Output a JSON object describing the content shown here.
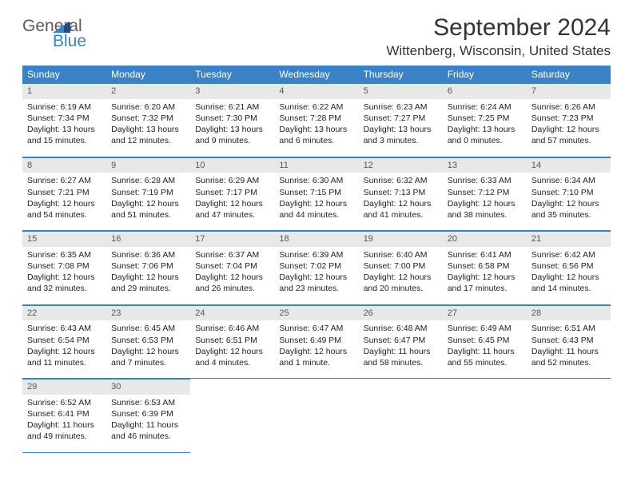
{
  "logo": {
    "textTop": "General",
    "textBottom": "Blue"
  },
  "header": {
    "title": "September 2024",
    "location": "Wittenberg, Wisconsin, United States"
  },
  "colors": {
    "headerBar": "#3a82c4",
    "headerText": "#ffffff",
    "dayNumBg": "#e8e8e8",
    "border": "#3a82c4",
    "logoGrey": "#5a5a5a",
    "logoBlue": "#3a82c4"
  },
  "columns": [
    "Sunday",
    "Monday",
    "Tuesday",
    "Wednesday",
    "Thursday",
    "Friday",
    "Saturday"
  ],
  "weeks": [
    [
      {
        "n": "1",
        "sr": "6:19 AM",
        "ss": "7:34 PM",
        "dl1": "13 hours",
        "dl2": "and 15 minutes."
      },
      {
        "n": "2",
        "sr": "6:20 AM",
        "ss": "7:32 PM",
        "dl1": "13 hours",
        "dl2": "and 12 minutes."
      },
      {
        "n": "3",
        "sr": "6:21 AM",
        "ss": "7:30 PM",
        "dl1": "13 hours",
        "dl2": "and 9 minutes."
      },
      {
        "n": "4",
        "sr": "6:22 AM",
        "ss": "7:28 PM",
        "dl1": "13 hours",
        "dl2": "and 6 minutes."
      },
      {
        "n": "5",
        "sr": "6:23 AM",
        "ss": "7:27 PM",
        "dl1": "13 hours",
        "dl2": "and 3 minutes."
      },
      {
        "n": "6",
        "sr": "6:24 AM",
        "ss": "7:25 PM",
        "dl1": "13 hours",
        "dl2": "and 0 minutes."
      },
      {
        "n": "7",
        "sr": "6:26 AM",
        "ss": "7:23 PM",
        "dl1": "12 hours",
        "dl2": "and 57 minutes."
      }
    ],
    [
      {
        "n": "8",
        "sr": "6:27 AM",
        "ss": "7:21 PM",
        "dl1": "12 hours",
        "dl2": "and 54 minutes."
      },
      {
        "n": "9",
        "sr": "6:28 AM",
        "ss": "7:19 PM",
        "dl1": "12 hours",
        "dl2": "and 51 minutes."
      },
      {
        "n": "10",
        "sr": "6:29 AM",
        "ss": "7:17 PM",
        "dl1": "12 hours",
        "dl2": "and 47 minutes."
      },
      {
        "n": "11",
        "sr": "6:30 AM",
        "ss": "7:15 PM",
        "dl1": "12 hours",
        "dl2": "and 44 minutes."
      },
      {
        "n": "12",
        "sr": "6:32 AM",
        "ss": "7:13 PM",
        "dl1": "12 hours",
        "dl2": "and 41 minutes."
      },
      {
        "n": "13",
        "sr": "6:33 AM",
        "ss": "7:12 PM",
        "dl1": "12 hours",
        "dl2": "and 38 minutes."
      },
      {
        "n": "14",
        "sr": "6:34 AM",
        "ss": "7:10 PM",
        "dl1": "12 hours",
        "dl2": "and 35 minutes."
      }
    ],
    [
      {
        "n": "15",
        "sr": "6:35 AM",
        "ss": "7:08 PM",
        "dl1": "12 hours",
        "dl2": "and 32 minutes."
      },
      {
        "n": "16",
        "sr": "6:36 AM",
        "ss": "7:06 PM",
        "dl1": "12 hours",
        "dl2": "and 29 minutes."
      },
      {
        "n": "17",
        "sr": "6:37 AM",
        "ss": "7:04 PM",
        "dl1": "12 hours",
        "dl2": "and 26 minutes."
      },
      {
        "n": "18",
        "sr": "6:39 AM",
        "ss": "7:02 PM",
        "dl1": "12 hours",
        "dl2": "and 23 minutes."
      },
      {
        "n": "19",
        "sr": "6:40 AM",
        "ss": "7:00 PM",
        "dl1": "12 hours",
        "dl2": "and 20 minutes."
      },
      {
        "n": "20",
        "sr": "6:41 AM",
        "ss": "6:58 PM",
        "dl1": "12 hours",
        "dl2": "and 17 minutes."
      },
      {
        "n": "21",
        "sr": "6:42 AM",
        "ss": "6:56 PM",
        "dl1": "12 hours",
        "dl2": "and 14 minutes."
      }
    ],
    [
      {
        "n": "22",
        "sr": "6:43 AM",
        "ss": "6:54 PM",
        "dl1": "12 hours",
        "dl2": "and 11 minutes."
      },
      {
        "n": "23",
        "sr": "6:45 AM",
        "ss": "6:53 PM",
        "dl1": "12 hours",
        "dl2": "and 7 minutes."
      },
      {
        "n": "24",
        "sr": "6:46 AM",
        "ss": "6:51 PM",
        "dl1": "12 hours",
        "dl2": "and 4 minutes."
      },
      {
        "n": "25",
        "sr": "6:47 AM",
        "ss": "6:49 PM",
        "dl1": "12 hours",
        "dl2": "and 1 minute."
      },
      {
        "n": "26",
        "sr": "6:48 AM",
        "ss": "6:47 PM",
        "dl1": "11 hours",
        "dl2": "and 58 minutes."
      },
      {
        "n": "27",
        "sr": "6:49 AM",
        "ss": "6:45 PM",
        "dl1": "11 hours",
        "dl2": "and 55 minutes."
      },
      {
        "n": "28",
        "sr": "6:51 AM",
        "ss": "6:43 PM",
        "dl1": "11 hours",
        "dl2": "and 52 minutes."
      }
    ],
    [
      {
        "n": "29",
        "sr": "6:52 AM",
        "ss": "6:41 PM",
        "dl1": "11 hours",
        "dl2": "and 49 minutes."
      },
      {
        "n": "30",
        "sr": "6:53 AM",
        "ss": "6:39 PM",
        "dl1": "11 hours",
        "dl2": "and 46 minutes."
      },
      null,
      null,
      null,
      null,
      null
    ]
  ],
  "labels": {
    "sunrise": "Sunrise: ",
    "sunset": "Sunset: ",
    "daylight": "Daylight: "
  }
}
